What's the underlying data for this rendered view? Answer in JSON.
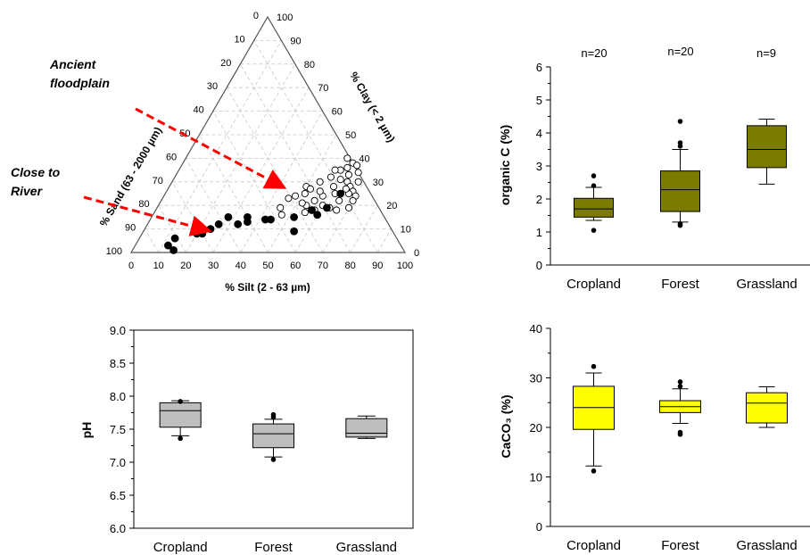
{
  "chart_data": [
    {
      "type": "scatter",
      "kind": "ternary",
      "axes": {
        "sand_label": "% Sand (63 - 2000 µm)",
        "clay_label": "% Clay (< 2 µm)",
        "silt_label": "% Silt (2 - 63 µm)",
        "ticks": [
          "0",
          "10",
          "20",
          "30",
          "40",
          "50",
          "60",
          "70",
          "80",
          "90",
          "100"
        ]
      },
      "annotations": [
        {
          "text_lines": [
            "Ancient",
            "floodplain"
          ],
          "color": "#ff0000"
        },
        {
          "text_lines": [
            "Close to",
            "River"
          ],
          "color": "#ff0000"
        }
      ],
      "series": [
        {
          "marker": "open-circle",
          "points": [
            {
              "silt": 50,
              "clay": 28
            },
            {
              "silt": 52,
              "clay": 27
            },
            {
              "silt": 54,
              "clay": 30
            },
            {
              "silt": 48,
              "clay": 24
            },
            {
              "silt": 51,
              "clay": 25
            },
            {
              "silt": 46,
              "clay": 23
            },
            {
              "silt": 45,
              "clay": 19
            },
            {
              "silt": 47,
              "clay": 16
            },
            {
              "silt": 54,
              "clay": 20
            },
            {
              "silt": 56,
              "clay": 22
            },
            {
              "silt": 58,
              "clay": 24
            },
            {
              "silt": 60,
              "clay": 28
            },
            {
              "silt": 57,
              "clay": 32
            },
            {
              "silt": 59,
              "clay": 35
            },
            {
              "silt": 61,
              "clay": 36
            },
            {
              "silt": 63,
              "clay": 33
            },
            {
              "silt": 64,
              "clay": 30
            },
            {
              "silt": 66,
              "clay": 28
            },
            {
              "silt": 68,
              "clay": 26
            },
            {
              "silt": 70,
              "clay": 24
            },
            {
              "silt": 62,
              "clay": 25
            },
            {
              "silt": 65,
              "clay": 22
            },
            {
              "silt": 60,
              "clay": 20
            },
            {
              "silt": 58,
              "clay": 18
            },
            {
              "silt": 66,
              "clay": 18
            },
            {
              "silt": 70,
              "clay": 19
            },
            {
              "silt": 68,
              "clay": 30
            },
            {
              "silt": 66,
              "clay": 34
            },
            {
              "silt": 62,
              "clay": 38
            },
            {
              "silt": 59,
              "clay": 40
            },
            {
              "silt": 64,
              "clay": 37
            },
            {
              "silt": 56,
              "clay": 26
            },
            {
              "silt": 63,
              "clay": 19
            },
            {
              "silt": 55,
              "clay": 17
            },
            {
              "silt": 67,
              "clay": 25
            },
            {
              "silt": 61,
              "clay": 31
            },
            {
              "silt": 57,
              "clay": 35
            },
            {
              "silt": 70,
              "clay": 22
            },
            {
              "silt": 52,
              "clay": 21
            },
            {
              "silt": 65,
              "clay": 27
            }
          ]
        },
        {
          "marker": "filled-circle",
          "points": [
            {
              "silt": 12,
              "clay": 3
            },
            {
              "silt": 15,
              "clay": 1
            },
            {
              "silt": 13,
              "clay": 6
            },
            {
              "silt": 20,
              "clay": 8
            },
            {
              "silt": 21,
              "clay": 9
            },
            {
              "silt": 22,
              "clay": 8
            },
            {
              "silt": 24,
              "clay": 10
            },
            {
              "silt": 26,
              "clay": 12
            },
            {
              "silt": 28,
              "clay": 15
            },
            {
              "silt": 33,
              "clay": 12
            },
            {
              "silt": 35,
              "clay": 15
            },
            {
              "silt": 36,
              "clay": 13
            },
            {
              "silt": 42,
              "clay": 14
            },
            {
              "silt": 44,
              "clay": 14
            },
            {
              "silt": 52,
              "clay": 15
            },
            {
              "silt": 55,
              "clay": 9
            },
            {
              "silt": 57,
              "clay": 18
            },
            {
              "silt": 60,
              "clay": 16
            },
            {
              "silt": 62,
              "clay": 19
            },
            {
              "silt": 64,
              "clay": 25
            }
          ]
        }
      ]
    },
    {
      "type": "box",
      "ylabel": "organic C (%)",
      "ylim": [
        0,
        6
      ],
      "yticks": [
        0,
        1,
        2,
        3,
        4,
        5,
        6
      ],
      "categories": [
        "Cropland",
        "Forest",
        "Grassland"
      ],
      "counts": [
        "n=20",
        "n=20",
        "n=9"
      ],
      "color": "#7b7b00",
      "boxes": [
        {
          "whisker_low": 1.35,
          "q1": 1.45,
          "median": 1.7,
          "q3": 2.02,
          "whisker_high": 2.35,
          "outliers": [
            1.05,
            2.4,
            2.7
          ]
        },
        {
          "whisker_low": 1.3,
          "q1": 1.62,
          "median": 2.28,
          "q3": 2.85,
          "whisker_high": 3.5,
          "outliers": [
            1.2,
            1.25,
            3.6,
            3.7,
            4.35
          ]
        },
        {
          "whisker_low": 2.45,
          "q1": 2.95,
          "median": 3.5,
          "q3": 4.22,
          "whisker_high": 4.42,
          "outliers": []
        }
      ]
    },
    {
      "type": "box",
      "ylabel": "pH",
      "ylim": [
        6.0,
        9.0
      ],
      "yticks": [
        "6.0",
        "6.5",
        "7.0",
        "7.5",
        "8.0",
        "8.5",
        "9.0"
      ],
      "categories": [
        "Cropland",
        "Forest",
        "Grassland"
      ],
      "color": "#bebebe",
      "boxes": [
        {
          "whisker_low": 7.4,
          "q1": 7.53,
          "median": 7.78,
          "q3": 7.9,
          "whisker_high": 7.93,
          "outliers": [
            7.36,
            7.92
          ]
        },
        {
          "whisker_low": 7.08,
          "q1": 7.22,
          "median": 7.43,
          "q3": 7.58,
          "whisker_high": 7.65,
          "outliers": [
            7.04,
            7.68,
            7.72
          ]
        },
        {
          "whisker_low": 7.36,
          "q1": 7.38,
          "median": 7.44,
          "q3": 7.66,
          "whisker_high": 7.7,
          "outliers": []
        }
      ]
    },
    {
      "type": "box",
      "ylabel": "CaCO₃ (%)",
      "ylim": [
        0,
        40
      ],
      "yticks": [
        0,
        10,
        20,
        30,
        40
      ],
      "categories": [
        "Cropland",
        "Forest",
        "Grassland"
      ],
      "color": "#ffff00",
      "boxes": [
        {
          "whisker_low": 12.2,
          "q1": 19.6,
          "median": 24.0,
          "q3": 28.3,
          "whisker_high": 31.0,
          "outliers": [
            11.2,
            32.3
          ]
        },
        {
          "whisker_low": 20.8,
          "q1": 23.0,
          "median": 24.2,
          "q3": 25.4,
          "whisker_high": 27.8,
          "outliers": [
            18.6,
            19.0,
            28.3,
            29.2
          ]
        },
        {
          "whisker_low": 20.0,
          "q1": 20.9,
          "median": 24.9,
          "q3": 27.0,
          "whisker_high": 28.2,
          "outliers": []
        }
      ]
    }
  ]
}
